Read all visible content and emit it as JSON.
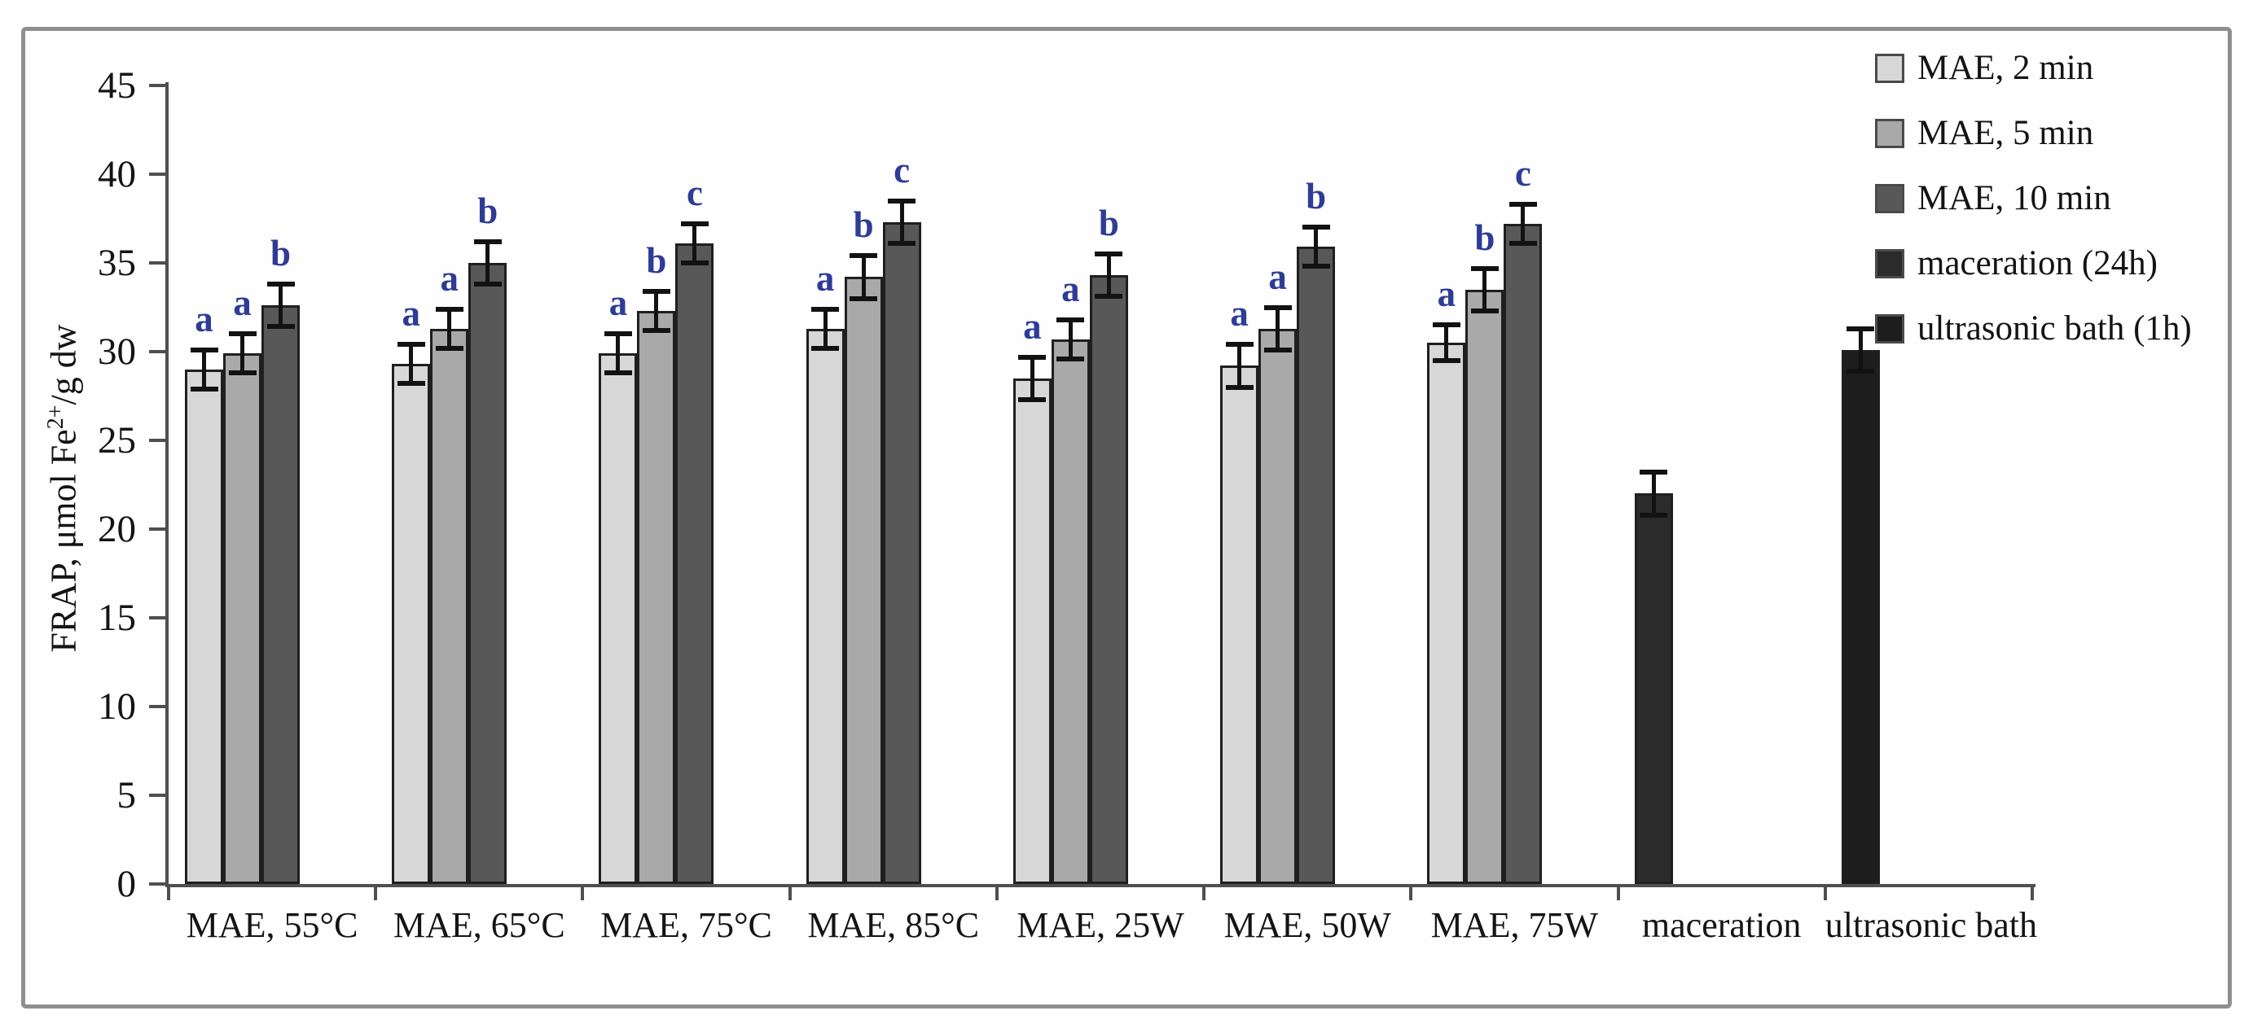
{
  "figure": {
    "ylabel": {
      "prefix": "FRAP, μmol Fe",
      "superscript": "2+",
      "suffix": "/g dw"
    }
  },
  "chart_data": {
    "type": "bar",
    "title": "",
    "xlabel": "",
    "ylabel": "FRAP, μmol Fe2+/g dw",
    "ylim": [
      0,
      45
    ],
    "yticks": [
      0,
      5,
      10,
      15,
      20,
      25,
      30,
      35,
      40,
      45
    ],
    "grid": false,
    "legend_position": "top-right",
    "letter_color": "#2e3c96",
    "categories": [
      "MAE, 55°C",
      "MAE, 65°C",
      "MAE, 75°C",
      "MAE, 85°C",
      "MAE, 25W",
      "MAE, 50W",
      "MAE, 75W",
      "maceration",
      "ultrasonic bath"
    ],
    "series": [
      {
        "name": "MAE, 2 min",
        "color": "#d7d7d7",
        "values": [
          29.0,
          29.3,
          29.9,
          31.3,
          28.5,
          29.2,
          30.5,
          null,
          null
        ],
        "errors": [
          1.1,
          1.1,
          1.1,
          1.1,
          1.2,
          1.2,
          1.0,
          null,
          null
        ],
        "letters": [
          "a",
          "a",
          "a",
          "a",
          "a",
          "a",
          "a",
          null,
          null
        ]
      },
      {
        "name": "MAE, 5 min",
        "color": "#a9a9a9",
        "values": [
          29.9,
          31.3,
          32.3,
          34.2,
          30.7,
          31.3,
          33.5,
          null,
          null
        ],
        "errors": [
          1.1,
          1.1,
          1.1,
          1.2,
          1.1,
          1.2,
          1.2,
          null,
          null
        ],
        "letters": [
          "a",
          "a",
          "b",
          "b",
          "a",
          "a",
          "b",
          null,
          null
        ]
      },
      {
        "name": "MAE, 10 min",
        "color": "#585858",
        "values": [
          32.6,
          35.0,
          36.1,
          37.3,
          34.3,
          35.9,
          37.2,
          null,
          null
        ],
        "errors": [
          1.2,
          1.2,
          1.1,
          1.2,
          1.2,
          1.1,
          1.1,
          null,
          null
        ],
        "letters": [
          "b",
          "b",
          "c",
          "c",
          "b",
          "b",
          "c",
          null,
          null
        ]
      },
      {
        "name": "maceration (24h)",
        "color": "#2b2b2b",
        "values": [
          null,
          null,
          null,
          null,
          null,
          null,
          null,
          22.0,
          null
        ],
        "errors": [
          null,
          null,
          null,
          null,
          null,
          null,
          null,
          1.2,
          null
        ],
        "letters": [
          null,
          null,
          null,
          null,
          null,
          null,
          null,
          null,
          null
        ]
      },
      {
        "name": "ultrasonic bath (1h)",
        "color": "#1d1d1d",
        "values": [
          null,
          null,
          null,
          null,
          null,
          null,
          null,
          null,
          30.1
        ],
        "errors": [
          null,
          null,
          null,
          null,
          null,
          null,
          null,
          null,
          1.2
        ],
        "letters": [
          null,
          null,
          null,
          null,
          null,
          null,
          null,
          null,
          null
        ]
      }
    ]
  }
}
